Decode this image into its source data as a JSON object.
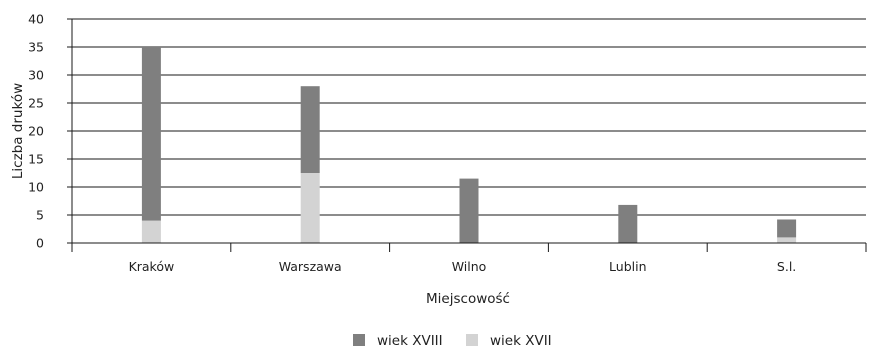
{
  "chart_data": {
    "type": "bar",
    "stacked": true,
    "categories": [
      "Kraków",
      "Warszawa",
      "Wilno",
      "Lublin",
      "S.l."
    ],
    "series": [
      {
        "name": "wiek XVII",
        "values": [
          4,
          12.5,
          0,
          0,
          1
        ],
        "color": "#d3d3d3"
      },
      {
        "name": "wiek XVIII",
        "values": [
          31,
          15.5,
          11.5,
          6.8,
          3.2
        ],
        "color": "#7f7f7f"
      }
    ],
    "legend_order": [
      1,
      0
    ],
    "xlabel": "Miejscowość",
    "ylabel": "Liczba druków",
    "ylim": [
      0,
      40
    ],
    "yticks": [
      0,
      5,
      10,
      15,
      20,
      25,
      30,
      35,
      40
    ],
    "grid": true,
    "legend_position": "bottom"
  }
}
